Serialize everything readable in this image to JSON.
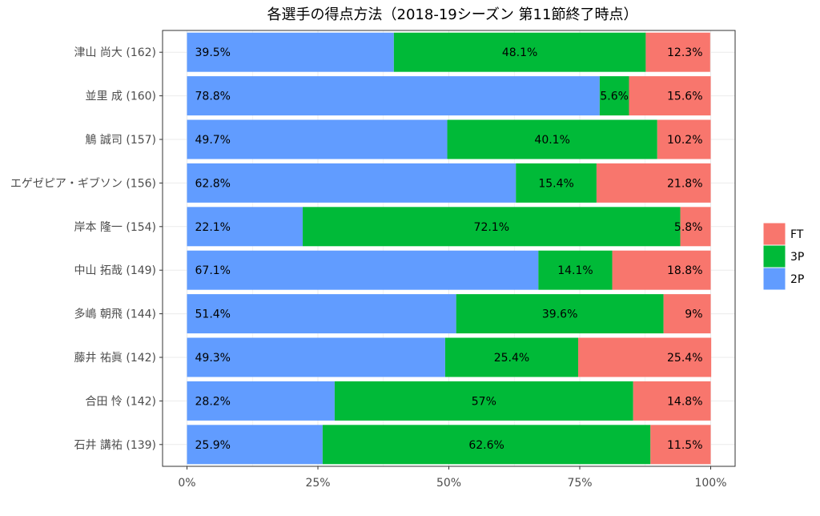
{
  "chart_data": {
    "type": "bar",
    "orientation": "horizontal",
    "stacked": "percent",
    "title": "各選手の得点方法（2018-19シーズン 第11節終了時点）",
    "categories": [
      "津山 尚大 (162)",
      "並里 成 (160)",
      "鵤 誠司 (157)",
      "エゲゼピア・ギブソン (156)",
      "岸本 隆一 (154)",
      "中山 拓哉 (149)",
      "多嶋 朝飛 (144)",
      "藤井 祐眞 (142)",
      "合田 怜 (142)",
      "石井 講祐 (139)"
    ],
    "series": [
      {
        "name": "2P",
        "color": "#619CFF",
        "values": [
          39.5,
          78.8,
          49.7,
          62.8,
          22.1,
          67.1,
          51.4,
          49.3,
          28.2,
          25.9
        ],
        "labels": [
          "39.5%",
          "78.8%",
          "49.7%",
          "62.8%",
          "22.1%",
          "67.1%",
          "51.4%",
          "49.3%",
          "28.2%",
          "25.9%"
        ]
      },
      {
        "name": "3P",
        "color": "#00BA38",
        "values": [
          48.1,
          5.6,
          40.1,
          15.4,
          72.1,
          14.1,
          39.6,
          25.4,
          57,
          62.6
        ],
        "labels": [
          "48.1%",
          "5.6%",
          "40.1%",
          "15.4%",
          "72.1%",
          "14.1%",
          "39.6%",
          "25.4%",
          "57%",
          "62.6%"
        ]
      },
      {
        "name": "FT",
        "color": "#F8766D",
        "values": [
          12.3,
          15.6,
          10.2,
          21.8,
          5.8,
          18.8,
          9,
          25.4,
          14.8,
          11.5
        ],
        "labels": [
          "12.3%",
          "15.6%",
          "10.2%",
          "21.8%",
          "5.8%",
          "18.8%",
          "9%",
          "25.4%",
          "14.8%",
          "11.5%"
        ]
      }
    ],
    "legend_order": [
      "FT",
      "3P",
      "2P"
    ],
    "legend_position": "right",
    "xlim": [
      0,
      100
    ],
    "x_ticks": [
      0,
      25,
      50,
      75,
      100
    ],
    "x_tick_labels": [
      "0%",
      "25%",
      "50%",
      "75%",
      "100%"
    ],
    "xlabel": "",
    "ylabel": "",
    "grid": true,
    "colors": {
      "panel_border": "#333333",
      "grid": "#ebebeb",
      "text": "#000000",
      "axis_text": "#4d4d4d"
    }
  }
}
